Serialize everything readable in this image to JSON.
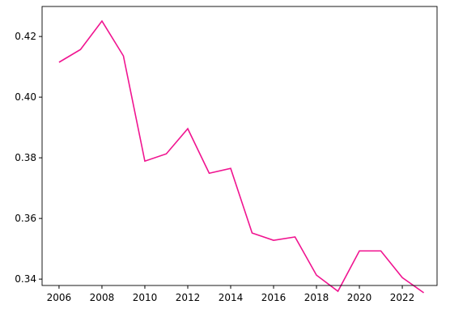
{
  "chart_data": {
    "type": "line",
    "x": [
      2006,
      2007,
      2008,
      2009,
      2010,
      2011,
      2012,
      2013,
      2014,
      2015,
      2016,
      2017,
      2018,
      2019,
      2020,
      2021,
      2022,
      2023
    ],
    "series": [
      {
        "color": "#f01490",
        "values": [
          0.4115,
          0.4157,
          0.4251,
          0.4136,
          0.3789,
          0.3813,
          0.3896,
          0.3749,
          0.3765,
          0.3552,
          0.3528,
          0.3539,
          0.3413,
          0.336,
          0.3493,
          0.3493,
          0.3405,
          0.3355
        ]
      }
    ],
    "xlim": [
      2005.21,
      2023.62
    ],
    "xticks": [
      2006,
      2008,
      2010,
      2012,
      2014,
      2016,
      2018,
      2020,
      2022
    ],
    "ylim": [
      0.3379,
      0.4299
    ],
    "yticks": [
      0.34,
      0.36,
      0.38,
      {
        "value": 0.4,
        "label": "0.40"
      },
      0.42
    ]
  }
}
